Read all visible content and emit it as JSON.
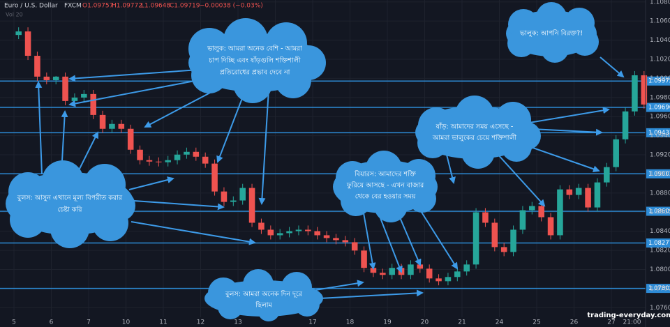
{
  "chart_data": {
    "type": "candlestick",
    "title": "Euro / U.S. Dollar",
    "exchange": "FXCM",
    "header_stats": [
      "O1.09757",
      "H1.09772",
      "L1.09648",
      "C1.09719",
      "−0.00038 (−0.03%)"
    ],
    "volume_label": "Vol 20",
    "categories": [
      "5",
      "6",
      "7",
      "10",
      "11",
      "12",
      "13",
      null,
      "17",
      "18",
      "19",
      "20",
      "21",
      "24",
      "25",
      "26",
      "27"
    ],
    "x_end_label": "21:00",
    "up_color": "#26a69a",
    "down_color": "#ef5350",
    "open": [
      1.10454,
      1.10491,
      1.10236,
      1.10018,
      1.09981,
      1.10018,
      1.09763,
      1.09799,
      1.09836,
      1.09617,
      1.09472,
      1.09523,
      1.09472,
      1.09253,
      1.09144,
      1.09129,
      1.09122,
      1.09144,
      1.09202,
      1.09231,
      1.0918,
      1.09108,
      1.08816,
      1.08707,
      1.08722,
      1.08853,
      1.08489,
      1.08416,
      1.08358,
      1.0838,
      1.08401,
      1.08416,
      1.08401,
      1.08358,
      1.08329,
      1.08307,
      1.08285,
      1.08198,
      1.08016,
      1.07965,
      1.07943,
      1.08016,
      1.07943,
      1.08052,
      1.08008,
      1.07906,
      1.07877,
      1.07921,
      1.07979,
      1.08052,
      1.08598,
      1.08489,
      1.08234,
      1.08183,
      1.08416,
      1.0862,
      1.08664,
      1.08547,
      1.08358,
      1.08838,
      1.0878,
      1.08853,
      1.08649,
      1.08911,
      1.09071,
      1.09362,
      1.09654,
      1.10032
    ],
    "high": [
      1.10534,
      1.10534,
      1.1028,
      1.10061,
      1.10025,
      1.10061,
      1.09843,
      1.09879,
      1.09879,
      1.09661,
      1.09566,
      1.09566,
      1.09515,
      1.09297,
      1.09188,
      1.09173,
      1.09188,
      1.09246,
      1.09275,
      1.09275,
      1.09224,
      1.09151,
      1.0886,
      1.08765,
      1.08896,
      1.08896,
      1.08532,
      1.0846,
      1.08423,
      1.08445,
      1.0846,
      1.0846,
      1.08445,
      1.08401,
      1.08372,
      1.08351,
      1.08329,
      1.08241,
      1.08059,
      1.08008,
      1.08059,
      1.08059,
      1.08096,
      1.08096,
      1.08052,
      1.0795,
      1.07965,
      1.08023,
      1.08096,
      1.08642,
      1.08642,
      1.08532,
      1.08278,
      1.0846,
      1.08664,
      1.08707,
      1.08707,
      1.08591,
      1.08882,
      1.08882,
      1.08896,
      1.08896,
      1.08955,
      1.09115,
      1.09406,
      1.09697,
      1.10076,
      1.10076
    ],
    "low": [
      1.10411,
      1.10192,
      1.09974,
      1.09938,
      1.09938,
      1.09719,
      1.09719,
      1.09756,
      1.09574,
      1.09428,
      1.09428,
      1.09428,
      1.0921,
      1.091,
      1.09086,
      1.09078,
      1.09078,
      1.091,
      1.09159,
      1.09137,
      1.09064,
      1.08773,
      1.08664,
      1.08664,
      1.08678,
      1.08445,
      1.08372,
      1.08314,
      1.08314,
      1.08336,
      1.08358,
      1.08358,
      1.08314,
      1.08285,
      1.08263,
      1.08241,
      1.08154,
      1.07972,
      1.07921,
      1.07899,
      1.07899,
      1.07899,
      1.07899,
      1.07965,
      1.07863,
      1.07834,
      1.07834,
      1.07877,
      1.07936,
      1.08008,
      1.08445,
      1.0819,
      1.08139,
      1.08139,
      1.08372,
      1.08576,
      1.08503,
      1.08314,
      1.08314,
      1.08736,
      1.08736,
      1.08605,
      1.08605,
      1.08867,
      1.09028,
      1.09319,
      1.0961,
      1.09683
    ],
    "close": [
      1.10491,
      1.10236,
      1.10018,
      1.09981,
      1.10018,
      1.09763,
      1.09799,
      1.09836,
      1.09617,
      1.09472,
      1.09523,
      1.09472,
      1.09253,
      1.09144,
      1.09129,
      1.09122,
      1.09144,
      1.09202,
      1.09231,
      1.0918,
      1.09108,
      1.08816,
      1.08707,
      1.08722,
      1.08853,
      1.08489,
      1.08416,
      1.08358,
      1.0838,
      1.08401,
      1.08416,
      1.08401,
      1.08358,
      1.08329,
      1.08307,
      1.08285,
      1.08198,
      1.08016,
      1.07965,
      1.07943,
      1.08016,
      1.07943,
      1.08052,
      1.08008,
      1.07906,
      1.07877,
      1.07921,
      1.07979,
      1.08052,
      1.08598,
      1.08489,
      1.08234,
      1.08183,
      1.08416,
      1.0862,
      1.08664,
      1.08547,
      1.08358,
      1.08838,
      1.0878,
      1.08853,
      1.08649,
      1.08911,
      1.09071,
      1.09362,
      1.09654,
      1.10032,
      1.09726
    ],
    "ylim": [
      1.075,
      1.1082
    ],
    "yticks": [
      {
        "value": 1.108,
        "label": "1.10800"
      },
      {
        "value": 1.106,
        "label": "1.10600"
      },
      {
        "value": 1.104,
        "label": "1.10400"
      },
      {
        "value": 1.102,
        "label": "1.10200"
      },
      {
        "value": 1.1,
        "label": "1.10000"
      },
      {
        "value": 1.098,
        "label": "1.09800"
      },
      {
        "value": 1.096,
        "label": "1.09600"
      },
      {
        "value": 1.094,
        "label": "1.09400"
      },
      {
        "value": 1.092,
        "label": "1.09200"
      },
      {
        "value": 1.09,
        "label": "1.09000"
      },
      {
        "value": 1.088,
        "label": "1.08800"
      },
      {
        "value": 1.086,
        "label": "1.08600"
      },
      {
        "value": 1.084,
        "label": "1.08400"
      },
      {
        "value": 1.082,
        "label": "1.08200"
      },
      {
        "value": 1.08,
        "label": "1.08000"
      },
      {
        "value": 1.078,
        "label": "1.07800"
      },
      {
        "value": 1.076,
        "label": "1.07600"
      }
    ],
    "grid": true,
    "levels": {
      "color": "#2d8bd6",
      "values": [
        1.09972,
        1.09696,
        1.09431,
        1.09001,
        1.08609,
        1.08277,
        1.07802
      ]
    },
    "annotations": [
      [
        "ভালুক: আমরা অনেক বেশি - আমরা",
        "চাপ দিচ্ছি এবং ষাঁড়গুলি শক্তিশালী",
        "প্রতিরোধের প্রভাব দেবে না"
      ],
      [
        "বুলস: আসুন এখানে মূল্য বিপরীত করার",
        "চেষ্টা করি"
      ],
      [
        "বিয়ারস: আমাদের শক্তি",
        "ফুরিয়ে আসছে - এখন বাজার",
        "থেকে বের হওয়ার সময়"
      ],
      [
        "ষাঁড়: আমাদের সময় এসেছে -",
        "আমরা ভালুকের চেয়ে শক্তিশালী"
      ],
      [
        "ভালুক: আপনি বিরক্ত?!"
      ],
      [
        "বুলস: আমরা অনেক দিন দূরে",
        "ছিলাম"
      ]
    ],
    "watermark": "trading-everyday.com"
  }
}
